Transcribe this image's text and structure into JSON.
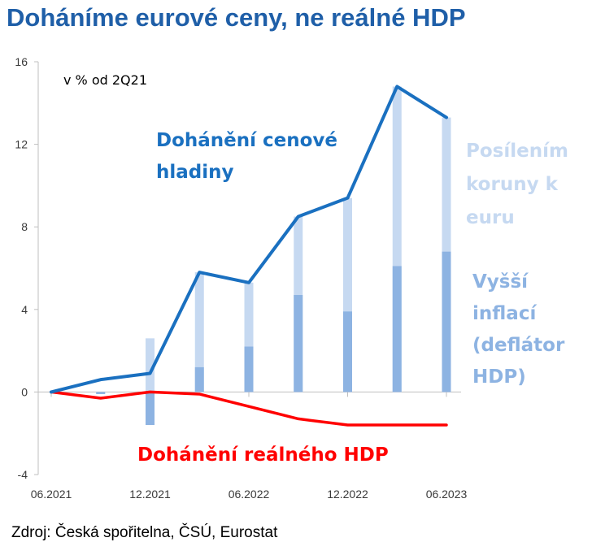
{
  "title": "Doháníme eurové ceny, ne reálné HDP",
  "source": "Zdroj: Česká spořitelna, ČSÚ, Eurostat",
  "colors": {
    "title": "#1f5fa8",
    "price_line": "#1a70c0",
    "gdp_line": "#ff0000",
    "koruna_bar": "#c6d9f1",
    "inflation_bar": "#8db3e2",
    "axis": "#bfbfbf"
  },
  "chart_data": {
    "type": "line",
    "unit_label": "v % od 2Q21",
    "ylim": [
      -4,
      16
    ],
    "yticks": [
      -4,
      0,
      4,
      8,
      12,
      16
    ],
    "x": [
      "2Q21",
      "3Q21",
      "4Q21",
      "1Q22",
      "2Q22",
      "3Q22",
      "4Q22",
      "1Q23",
      "2Q23"
    ],
    "xtick_labels": [
      {
        "index": 0,
        "label": "06.2021"
      },
      {
        "index": 2,
        "label": "12.2021"
      },
      {
        "index": 4,
        "label": "06.2022"
      },
      {
        "index": 6,
        "label": "12.2022"
      },
      {
        "index": 8,
        "label": "06.2023"
      }
    ],
    "series": [
      {
        "name": "Dohánění cenové hladiny",
        "type": "line",
        "values": [
          0,
          0.6,
          0.9,
          5.8,
          5.3,
          8.5,
          9.4,
          14.8,
          13.3
        ]
      },
      {
        "name": "Dohánění reálného HDP",
        "type": "line",
        "values": [
          0,
          -0.3,
          0,
          -0.1,
          -0.7,
          -1.3,
          -1.6,
          -1.6,
          -1.6
        ]
      },
      {
        "name": "Posílením koruny k euru",
        "type": "bar",
        "values": [
          0,
          -0.1,
          2.6,
          5.8,
          5.3,
          8.5,
          9.4,
          14.8,
          13.3
        ]
      },
      {
        "name": "Vyšší inflací (deflátor HDP)",
        "type": "bar",
        "values": [
          0,
          -0.1,
          -1.6,
          1.2,
          2.2,
          4.7,
          3.9,
          6.1,
          6.8
        ]
      }
    ],
    "annotations": {
      "price": [
        "Dohánění cenové",
        "hladiny"
      ],
      "koruna": [
        "Posílením",
        "koruny k",
        "euru"
      ],
      "inflation": [
        "Vyšší",
        "inflací",
        "(deflátor",
        "HDP)"
      ],
      "gdp": "Dohánění reálného HDP"
    },
    "grid": false,
    "legend": "none"
  }
}
